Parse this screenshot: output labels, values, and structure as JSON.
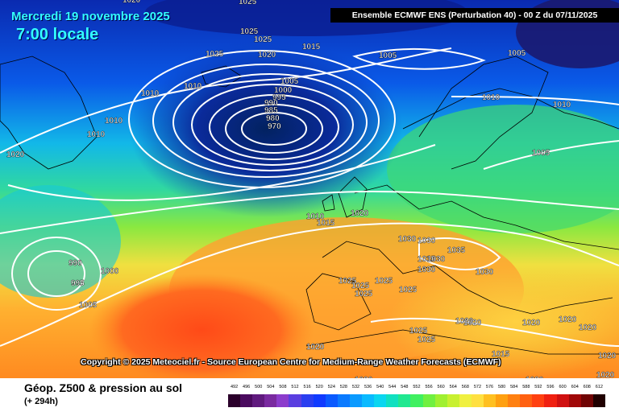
{
  "header": {
    "date": "Mercredi 19 novembre 2025",
    "time": "7:00 locale",
    "banner": "Ensemble ECMWF ENS  (Perturbation 40)  - 00 Z du 07/11/2025"
  },
  "copyright": "Copyright © 2025 Meteociel.fr - Source European Centre for Medium-Range Weather Forecasts (ECMWF)",
  "footer": {
    "title": "Géop. Z500 & pression au sol",
    "subtitle": "(+ 294h)"
  },
  "scale": {
    "labels": [
      "492",
      "496",
      "500",
      "504",
      "508",
      "512",
      "516",
      "520",
      "524",
      "528",
      "532",
      "536",
      "540",
      "544",
      "548",
      "552",
      "556",
      "560",
      "564",
      "568",
      "572",
      "576",
      "580",
      "584",
      "588",
      "592",
      "596",
      "600",
      "604",
      "608",
      "612"
    ],
    "colors": [
      "#2b002b",
      "#4a0a5e",
      "#601a7e",
      "#7a2aa0",
      "#8c3ccc",
      "#5a3ee0",
      "#2a3ef0",
      "#103aff",
      "#0a5aff",
      "#0a7aff",
      "#0a9aff",
      "#0abaff",
      "#0ad6f0",
      "#10e0c0",
      "#20e890",
      "#40f060",
      "#70f040",
      "#a0f030",
      "#c8f030",
      "#f0f040",
      "#ffe040",
      "#ffc020",
      "#ffa010",
      "#ff8010",
      "#ff6010",
      "#ff4010",
      "#f02010",
      "#d01010",
      "#a00808",
      "#700404",
      "#200000"
    ]
  },
  "isobar_labels": [
    "1025",
    "1020",
    "1015",
    "1010",
    "1005",
    "1000",
    "995",
    "990",
    "985",
    "980",
    "970",
    "1030",
    "1035",
    "1045",
    "1040"
  ],
  "colors": {
    "ocean_deep": "#0a3ab8",
    "low_center": "#022a7a",
    "warm": "#ff8a2a",
    "hot": "#ff5a20"
  }
}
